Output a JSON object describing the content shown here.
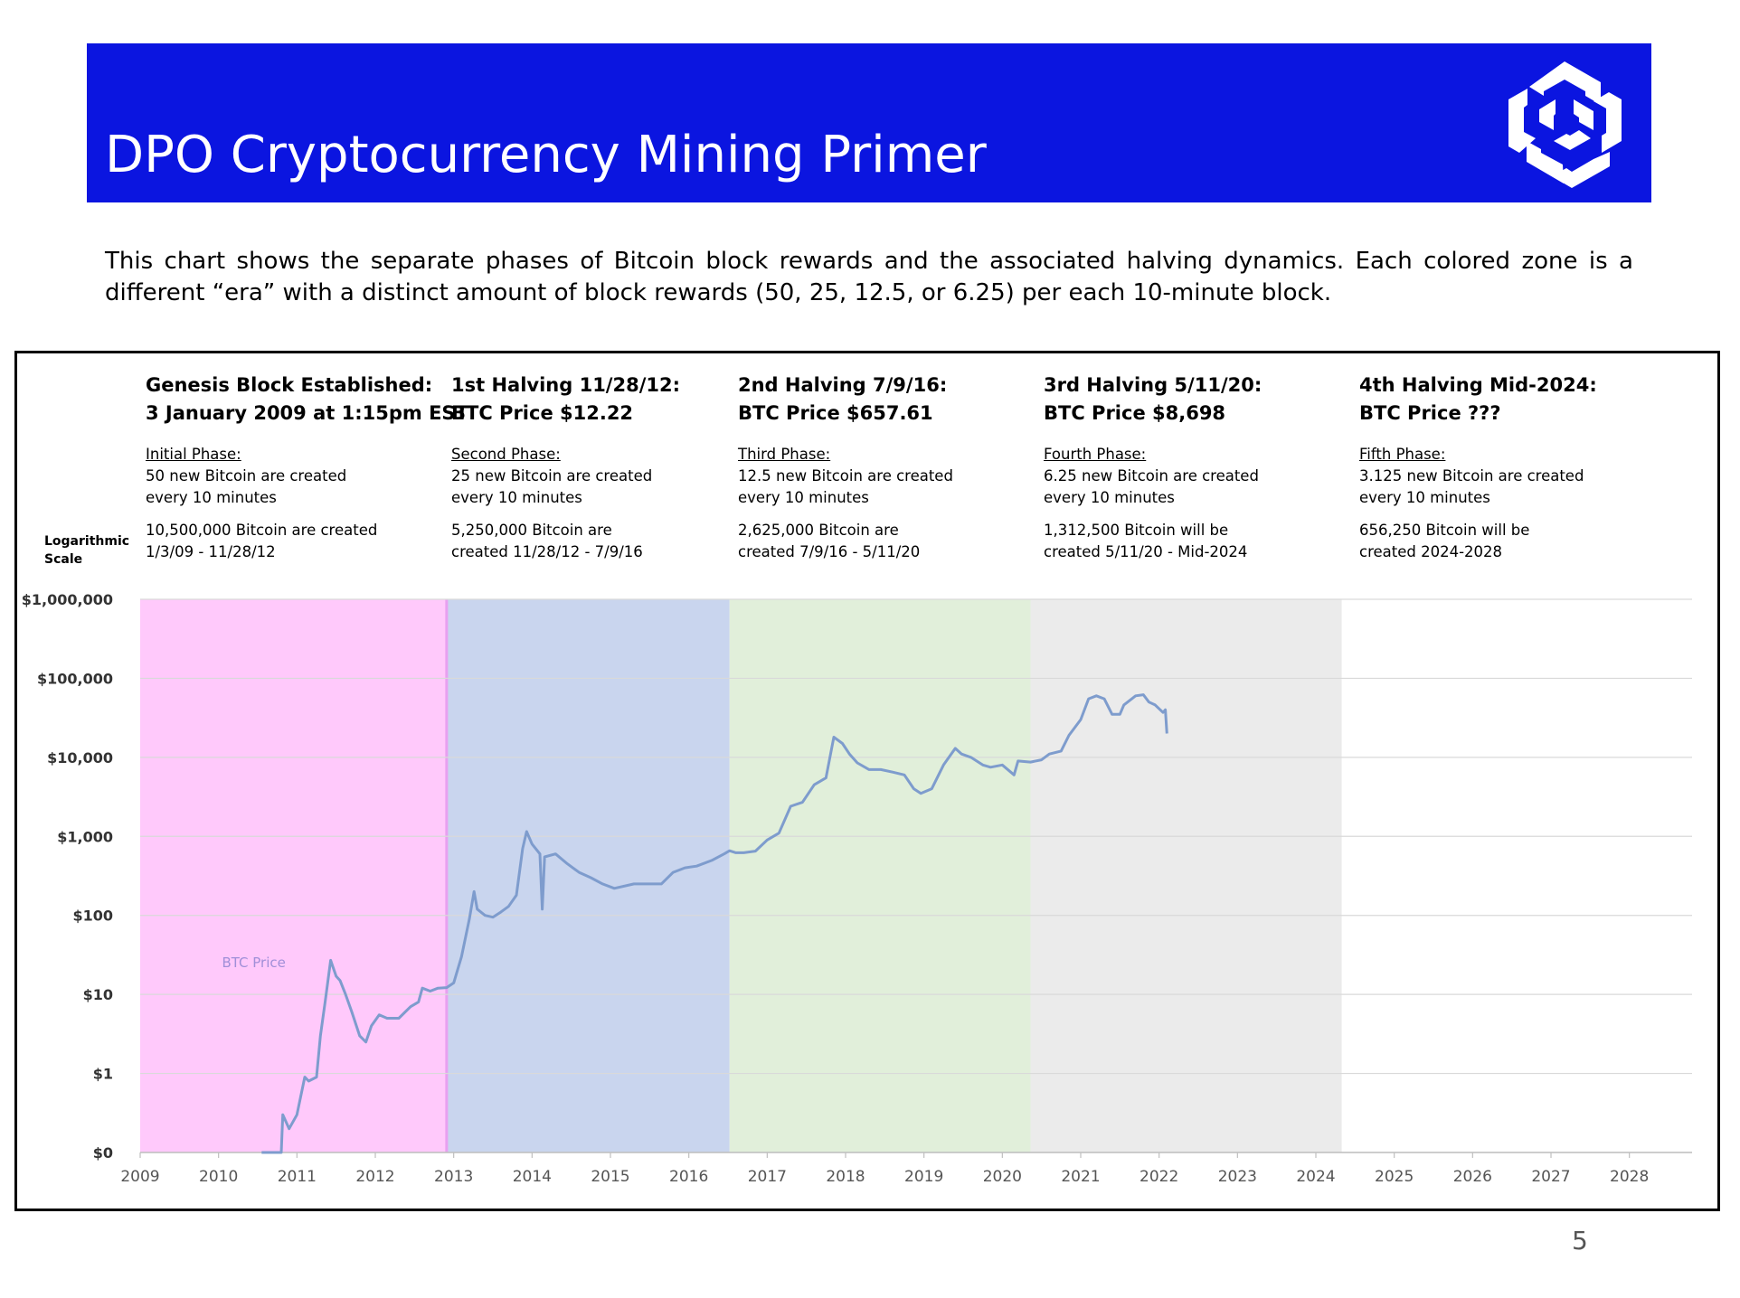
{
  "header": {
    "title": "DPO Cryptocurrency Mining Primer"
  },
  "description": "This chart shows the separate phases of Bitcoin block rewards and the associated halving dynamics.  Each colored zone is a different “era” with a distinct amount of block rewards (50, 25, 12.5, or 6.25) per each 10-minute block.",
  "scale_label": "Logarithmic Scale",
  "page_number": "5",
  "phases": [
    {
      "title_line1": "Genesis Block Established:",
      "title_line2": "3 January 2009 at 1:15pm EST",
      "phase_name": "Initial Phase:",
      "reward_line1": "50 new Bitcoin are created",
      "reward_line2": "every 10 minutes",
      "total_line1": "10,500,000 Bitcoin are created",
      "total_line2": "1/3/09 - 11/28/12"
    },
    {
      "title_line1": "1st Halving 11/28/12:",
      "title_line2": "BTC Price $12.22",
      "phase_name": "Second Phase:",
      "reward_line1": "25 new Bitcoin are created",
      "reward_line2": "every 10 minutes",
      "total_line1": "5,250,000 Bitcoin are",
      "total_line2": "created 11/28/12 - 7/9/16"
    },
    {
      "title_line1": "2nd Halving 7/9/16:",
      "title_line2": "BTC Price $657.61",
      "phase_name": "Third Phase:",
      "reward_line1": "12.5 new Bitcoin are created",
      "reward_line2": "every 10 minutes",
      "total_line1": "2,625,000 Bitcoin are",
      "total_line2": "created 7/9/16 - 5/11/20"
    },
    {
      "title_line1": "3rd Halving 5/11/20:",
      "title_line2": "BTC Price $8,698",
      "phase_name": "Fourth Phase:",
      "reward_line1": "6.25 new Bitcoin are created",
      "reward_line2": "every 10 minutes",
      "total_line1": "1,312,500 Bitcoin will be",
      "total_line2": "created 5/11/20 - Mid-2024"
    },
    {
      "title_line1": "4th Halving Mid-2024:",
      "title_line2": "BTC Price ???",
      "phase_name": "Fifth Phase:",
      "reward_line1": "3.125 new Bitcoin are created",
      "reward_line2": "every 10 minutes",
      "total_line1": "656,250 Bitcoin will be",
      "total_line2": "created 2024-2028"
    }
  ],
  "chart_data": {
    "type": "line",
    "yscale": "log",
    "xlim": [
      2009,
      2028.8
    ],
    "x_ticks": [
      "2009",
      "2010",
      "2011",
      "2012",
      "2013",
      "2014",
      "2015",
      "2016",
      "2017",
      "2018",
      "2019",
      "2020",
      "2021",
      "2022",
      "2023",
      "2024",
      "2025",
      "2026",
      "2027",
      "2028"
    ],
    "y_ticks": [
      {
        "value": 0.1,
        "label": "$0"
      },
      {
        "value": 1,
        "label": "$1"
      },
      {
        "value": 10,
        "label": "$10"
      },
      {
        "value": 100,
        "label": "$100"
      },
      {
        "value": 1000,
        "label": "$1,000"
      },
      {
        "value": 10000,
        "label": "$10,000"
      },
      {
        "value": 100000,
        "label": "$100,000"
      },
      {
        "value": 1000000,
        "label": "$1,000,000"
      }
    ],
    "zones": [
      {
        "start": 2009.0,
        "end": 2012.91,
        "color": "#ffc9fb"
      },
      {
        "start": 2012.91,
        "end": 2016.52,
        "color": "#c9d5ee"
      },
      {
        "start": 2016.52,
        "end": 2020.36,
        "color": "#e1efda"
      },
      {
        "start": 2020.36,
        "end": 2024.33,
        "color": "#ebebeb"
      }
    ],
    "grid": true,
    "series": [
      {
        "name": "BTC Price",
        "color": "#7e9ccd",
        "x": [
          2010.55,
          2010.8,
          2010.82,
          2010.9,
          2011.0,
          2011.1,
          2011.15,
          2011.25,
          2011.3,
          2011.36,
          2011.43,
          2011.5,
          2011.55,
          2011.62,
          2011.7,
          2011.8,
          2011.88,
          2011.95,
          2012.05,
          2012.15,
          2012.3,
          2012.45,
          2012.55,
          2012.6,
          2012.7,
          2012.8,
          2012.91,
          2013.0,
          2013.1,
          2013.2,
          2013.26,
          2013.3,
          2013.4,
          2013.5,
          2013.6,
          2013.7,
          2013.8,
          2013.88,
          2013.93,
          2014.0,
          2014.1,
          2014.13,
          2014.16,
          2014.3,
          2014.45,
          2014.6,
          2014.75,
          2014.9,
          2015.05,
          2015.3,
          2015.5,
          2015.65,
          2015.8,
          2015.95,
          2016.1,
          2016.3,
          2016.45,
          2016.52,
          2016.6,
          2016.7,
          2016.85,
          2017.0,
          2017.15,
          2017.3,
          2017.45,
          2017.6,
          2017.75,
          2017.85,
          2017.96,
          2018.05,
          2018.15,
          2018.3,
          2018.45,
          2018.6,
          2018.75,
          2018.87,
          2018.96,
          2019.1,
          2019.25,
          2019.4,
          2019.48,
          2019.6,
          2019.75,
          2019.85,
          2020.0,
          2020.15,
          2020.2,
          2020.36,
          2020.5,
          2020.6,
          2020.75,
          2020.85,
          2021.0,
          2021.1,
          2021.2,
          2021.3,
          2021.4,
          2021.5,
          2021.55,
          2021.7,
          2021.8,
          2021.87,
          2021.95,
          2022.05,
          2022.08,
          2022.1
        ],
        "y": [
          0.1,
          0.1,
          0.3,
          0.2,
          0.3,
          0.9,
          0.8,
          0.9,
          3,
          8,
          27,
          17,
          15,
          10,
          6,
          3,
          2.5,
          4,
          5.5,
          5,
          5,
          7,
          8,
          12,
          11,
          12,
          12.2,
          14,
          30,
          90,
          200,
          120,
          100,
          95,
          110,
          130,
          180,
          700,
          1150,
          800,
          600,
          120,
          550,
          600,
          450,
          350,
          300,
          250,
          220,
          250,
          250,
          250,
          350,
          400,
          420,
          500,
          600,
          657,
          620,
          620,
          650,
          900,
          1100,
          2400,
          2700,
          4500,
          5500,
          18000,
          15000,
          11000,
          8500,
          7000,
          7000,
          6500,
          6000,
          4000,
          3500,
          4000,
          8000,
          13000,
          11000,
          10000,
          8000,
          7500,
          8000,
          6000,
          9000,
          8700,
          9300,
          11000,
          12000,
          19000,
          30000,
          55000,
          60000,
          55000,
          35000,
          35000,
          46000,
          60000,
          62000,
          50000,
          46000,
          37000,
          40000,
          20000
        ]
      }
    ]
  }
}
